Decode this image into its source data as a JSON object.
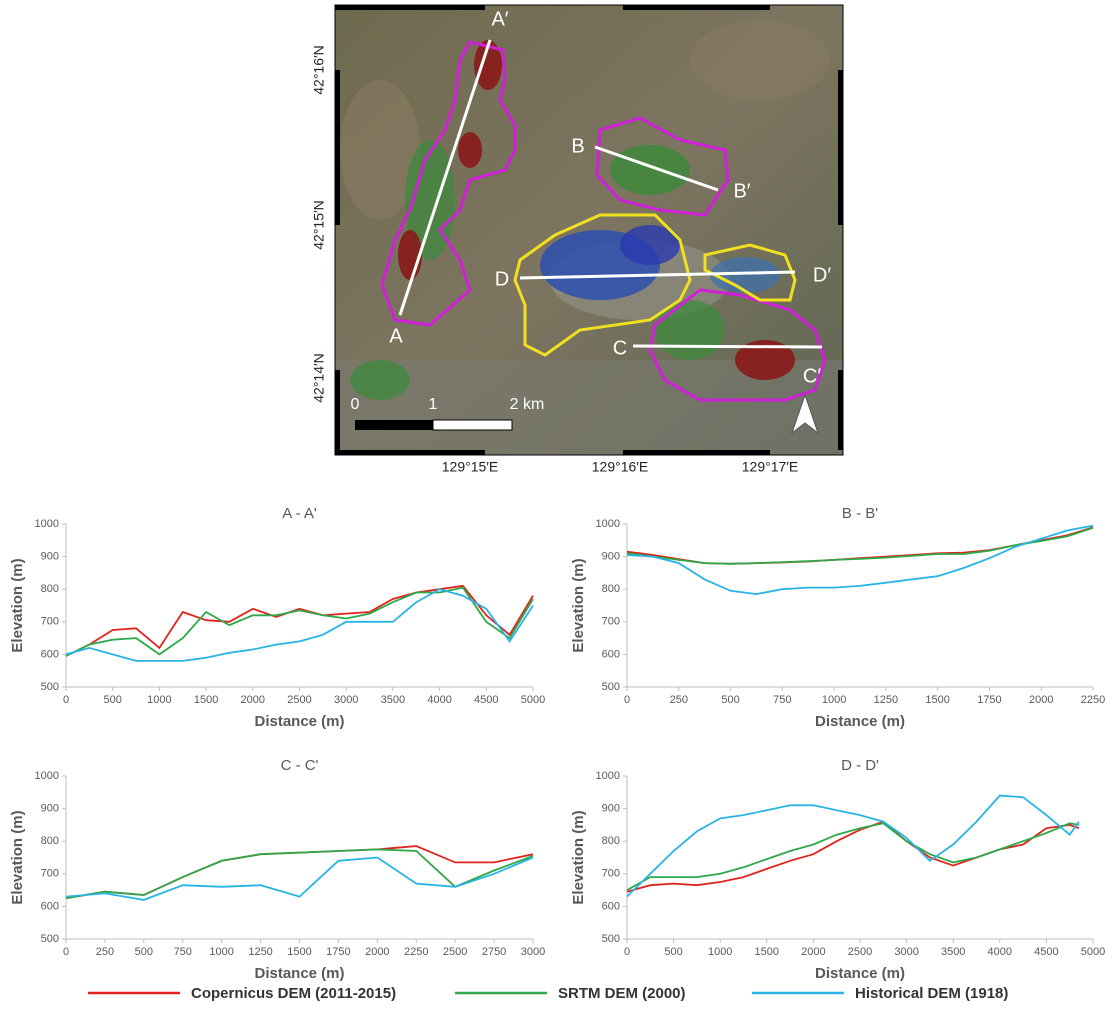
{
  "map": {
    "profile_labels": [
      "A",
      "A′",
      "B",
      "B′",
      "C",
      "C′",
      "D",
      "D′"
    ],
    "lat_labels": [
      "42°16′N",
      "42°15′N",
      "42°14′N"
    ],
    "lon_labels": [
      "129°15′E",
      "129°16′E",
      "129°17′E"
    ],
    "scale_labels": [
      "0",
      "1",
      "2 km"
    ]
  },
  "legend": [
    {
      "name": "Copernicus DEM (2011-2015)",
      "color": "#e0231c"
    },
    {
      "name": "SRTM DEM (2000)",
      "color": "#2ea84a"
    },
    {
      "name": "Historical DEM (1918)",
      "color": "#28b4e6"
    }
  ],
  "chart_data": [
    {
      "type": "line",
      "title": "A - A'",
      "xlabel": "Distance (m)",
      "ylabel": "Elevation (m)",
      "x": [
        0,
        250,
        500,
        750,
        1000,
        1250,
        1500,
        1750,
        2000,
        2250,
        2500,
        2750,
        3000,
        3250,
        3500,
        3750,
        4000,
        4250,
        4500,
        4750,
        5000
      ],
      "series": [
        {
          "values": [
            595,
            630,
            675,
            680,
            620,
            730,
            705,
            700,
            740,
            715,
            740,
            720,
            725,
            730,
            770,
            790,
            800,
            810,
            720,
            660,
            780
          ]
        },
        {
          "values": [
            595,
            630,
            645,
            650,
            600,
            650,
            730,
            690,
            720,
            720,
            735,
            720,
            710,
            725,
            760,
            790,
            790,
            805,
            700,
            650,
            770
          ]
        },
        {
          "values": [
            600,
            620,
            600,
            580,
            580,
            580,
            590,
            605,
            615,
            630,
            640,
            660,
            700,
            700,
            700,
            760,
            800,
            780,
            740,
            640,
            750
          ]
        }
      ],
      "xlim": [
        0,
        5000
      ],
      "xticks": [
        0,
        500,
        1000,
        1500,
        2000,
        2500,
        3000,
        3500,
        4000,
        4500,
        5000
      ],
      "ylim": [
        500,
        1000
      ],
      "yticks": [
        500,
        600,
        700,
        800,
        900,
        1000
      ]
    },
    {
      "type": "line",
      "title": "B - B'",
      "xlabel": "Distance (m)",
      "ylabel": "Elevation (m)",
      "x": [
        0,
        125,
        250,
        375,
        500,
        625,
        750,
        875,
        1000,
        1125,
        1250,
        1375,
        1500,
        1625,
        1750,
        1875,
        2000,
        2125,
        2250
      ],
      "series": [
        {
          "values": [
            915,
            905,
            892,
            880,
            878,
            880,
            882,
            885,
            890,
            895,
            900,
            905,
            910,
            912,
            920,
            935,
            950,
            965,
            990
          ]
        },
        {
          "values": [
            910,
            900,
            890,
            880,
            878,
            880,
            883,
            886,
            890,
            893,
            897,
            902,
            908,
            908,
            918,
            935,
            948,
            962,
            988
          ]
        },
        {
          "values": [
            905,
            900,
            880,
            830,
            795,
            785,
            800,
            805,
            805,
            810,
            820,
            830,
            840,
            865,
            895,
            930,
            955,
            980,
            995
          ]
        }
      ],
      "xlim": [
        0,
        2250
      ],
      "xticks": [
        0,
        250,
        500,
        750,
        1000,
        1250,
        1500,
        1750,
        2000,
        2250
      ],
      "ylim": [
        500,
        1000
      ],
      "yticks": [
        500,
        600,
        700,
        800,
        900,
        1000
      ]
    },
    {
      "type": "line",
      "title": "C - C'",
      "xlabel": "Distance (m)",
      "ylabel": "Elevation (m)",
      "x": [
        0,
        250,
        500,
        750,
        1000,
        1250,
        1500,
        1750,
        2000,
        2250,
        2500,
        2750,
        3000
      ],
      "series": [
        {
          "values": [
            625,
            645,
            635,
            690,
            740,
            760,
            765,
            770,
            775,
            785,
            735,
            735,
            760
          ]
        },
        {
          "values": [
            625,
            645,
            635,
            690,
            740,
            760,
            765,
            770,
            775,
            770,
            660,
            710,
            755
          ]
        },
        {
          "values": [
            630,
            640,
            620,
            665,
            660,
            665,
            630,
            740,
            750,
            670,
            660,
            700,
            750
          ]
        }
      ],
      "xlim": [
        0,
        3000
      ],
      "xticks": [
        0,
        250,
        500,
        750,
        1000,
        1250,
        1500,
        1750,
        2000,
        2250,
        2500,
        2750,
        3000
      ],
      "ylim": [
        500,
        1000
      ],
      "yticks": [
        500,
        600,
        700,
        800,
        900,
        1000
      ]
    },
    {
      "type": "line",
      "title": "D - D'",
      "xlabel": "Distance (m)",
      "ylabel": "Elevation (m)",
      "x": [
        0,
        250,
        500,
        750,
        1000,
        1250,
        1500,
        1750,
        2000,
        2250,
        2500,
        2750,
        3000,
        3250,
        3500,
        3750,
        4000,
        4250,
        4500,
        4750,
        4850
      ],
      "series": [
        {
          "values": [
            645,
            665,
            670,
            665,
            675,
            690,
            715,
            740,
            760,
            800,
            835,
            860,
            800,
            750,
            725,
            750,
            775,
            790,
            840,
            850,
            840
          ]
        },
        {
          "values": [
            650,
            690,
            690,
            690,
            700,
            720,
            745,
            770,
            790,
            820,
            840,
            855,
            800,
            760,
            735,
            750,
            775,
            800,
            825,
            855,
            850
          ]
        },
        {
          "values": [
            630,
            700,
            770,
            830,
            870,
            880,
            895,
            910,
            910,
            895,
            880,
            860,
            810,
            740,
            790,
            860,
            940,
            935,
            880,
            820,
            860
          ]
        }
      ],
      "xlim": [
        0,
        5000
      ],
      "xticks": [
        0,
        500,
        1000,
        1500,
        2000,
        2500,
        3000,
        3500,
        4000,
        4500,
        5000
      ],
      "ylim": [
        500,
        1000
      ],
      "yticks": [
        500,
        600,
        700,
        800,
        900,
        1000
      ]
    }
  ]
}
